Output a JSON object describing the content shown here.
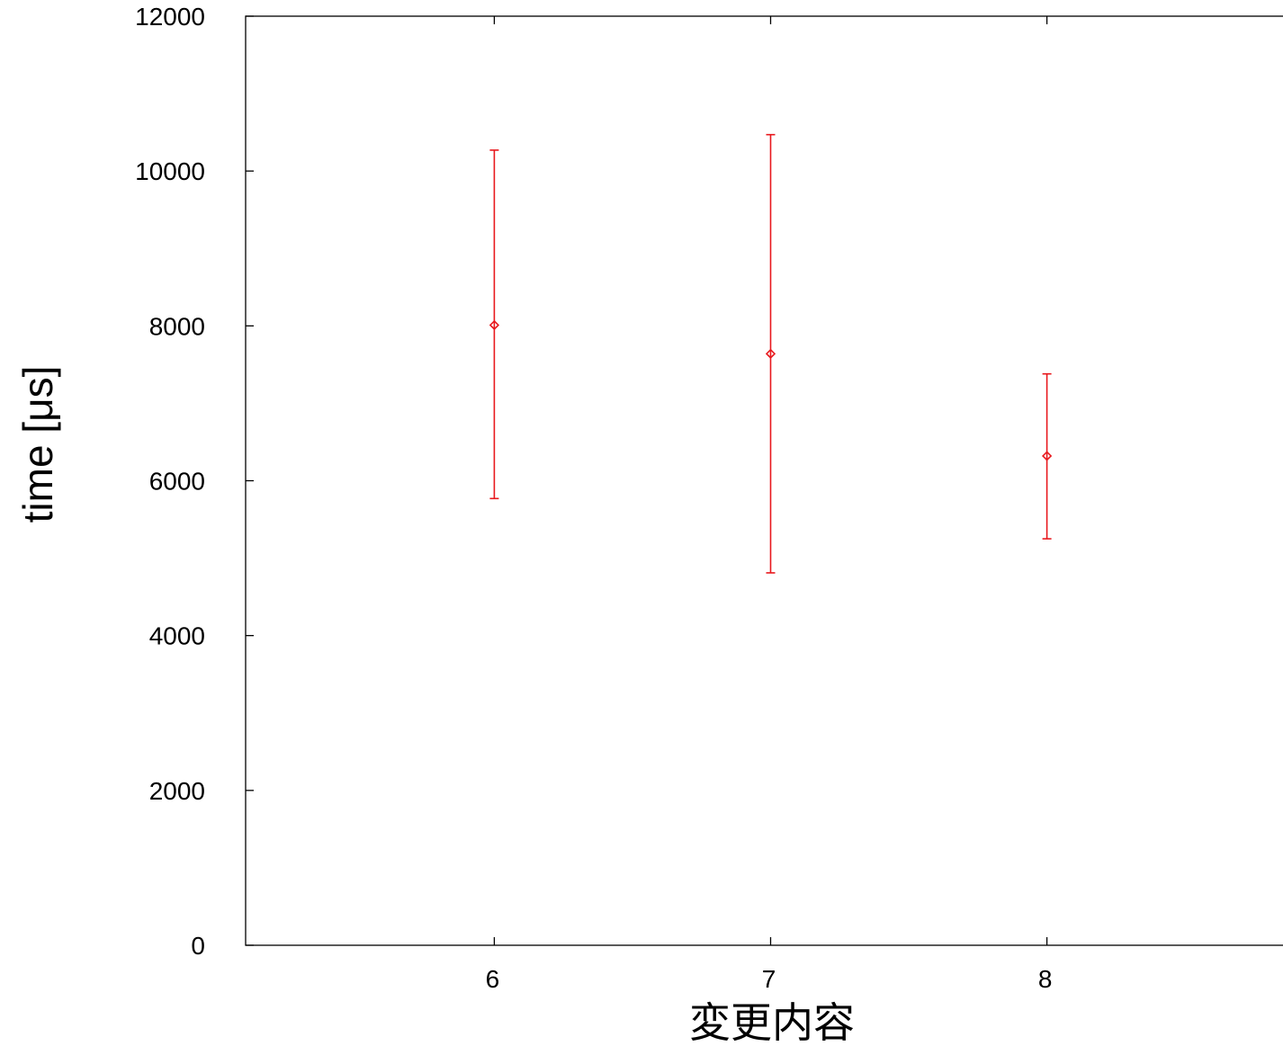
{
  "chart_data": {
    "type": "scatter",
    "title": "",
    "xlabel": "変更内容",
    "ylabel": "time [μs]",
    "xlim": [
      5.1,
      8.9
    ],
    "ylim": [
      0,
      12000
    ],
    "x_ticks": [
      6,
      7,
      8
    ],
    "y_ticks": [
      0,
      2000,
      4000,
      6000,
      8000,
      10000,
      12000
    ],
    "grid": false,
    "legend": "none",
    "error_bars": true,
    "series": [
      {
        "color": "#e8191e",
        "marker": "diamond",
        "points": [
          {
            "x": 6,
            "y": 8010,
            "y_low": 5770,
            "y_high": 10270
          },
          {
            "x": 7,
            "y": 7640,
            "y_low": 4810,
            "y_high": 10470
          },
          {
            "x": 8,
            "y": 6320,
            "y_low": 5250,
            "y_high": 7380
          }
        ]
      }
    ]
  }
}
